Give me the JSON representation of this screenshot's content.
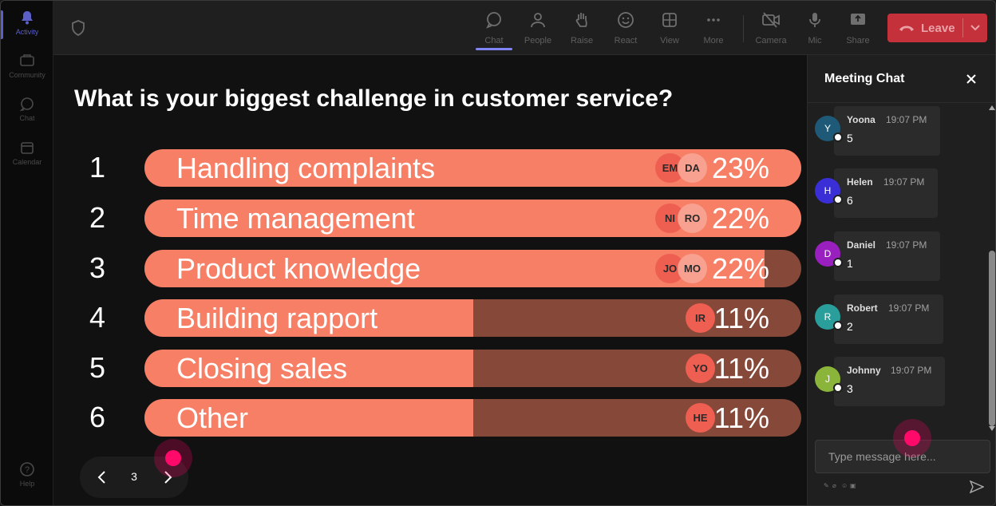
{
  "rail": {
    "items": [
      {
        "label": "Activity",
        "icon": "bell-icon",
        "active": true
      },
      {
        "label": "Community",
        "icon": "community-icon"
      },
      {
        "label": "Chat",
        "icon": "chat-icon"
      },
      {
        "label": "Calendar",
        "icon": "calendar-icon"
      }
    ],
    "help_label": "Help"
  },
  "toolbar": {
    "buttons": [
      {
        "label": "Chat",
        "icon": "chat-icon",
        "active": true
      },
      {
        "label": "People",
        "icon": "people-icon"
      },
      {
        "label": "Raise",
        "icon": "raise-hand-icon"
      },
      {
        "label": "React",
        "icon": "smiley-icon"
      },
      {
        "label": "View",
        "icon": "grid-icon"
      },
      {
        "label": "More",
        "icon": "more-icon"
      },
      {
        "label": "Camera",
        "icon": "camera-off-icon"
      },
      {
        "label": "Mic",
        "icon": "mic-icon"
      },
      {
        "label": "Share",
        "icon": "share-icon"
      }
    ],
    "leave_label": "Leave",
    "leave_color": "#c4313b"
  },
  "poll": {
    "question": "What is your biggest challenge in customer service?",
    "options": [
      {
        "num": "1",
        "label": "Handling complaints",
        "percent": "23%",
        "fill_fraction": 1.0,
        "avatars": [
          "EM",
          "DA"
        ]
      },
      {
        "num": "2",
        "label": "Time management",
        "percent": "22%",
        "fill_fraction": 1.0,
        "avatars": [
          "NI",
          "RO"
        ]
      },
      {
        "num": "3",
        "label": "Product knowledge",
        "percent": "22%",
        "fill_fraction": 0.944,
        "avatars": [
          "JO",
          "MO"
        ]
      },
      {
        "num": "4",
        "label": "Building rapport",
        "percent": "11%",
        "fill_fraction": 0.5,
        "avatars": [
          "IR"
        ]
      },
      {
        "num": "5",
        "label": "Closing sales",
        "percent": "11%",
        "fill_fraction": 0.5,
        "avatars": [
          "YO"
        ]
      },
      {
        "num": "6",
        "label": "Other",
        "percent": "11%",
        "fill_fraction": 0.5,
        "avatars": [
          "HE"
        ]
      }
    ],
    "bar_color": "#f67f65",
    "bar_track_color": "#854839",
    "page": "3"
  },
  "chat": {
    "title": "Meeting Chat",
    "messages": [
      {
        "initial": "Y",
        "name": "Yoona",
        "time": "19:07 PM",
        "text": "5",
        "avatar_color": "#1e5a78"
      },
      {
        "initial": "H",
        "name": "Helen",
        "time": "19:07 PM",
        "text": "6",
        "avatar_color": "#3a2fd6"
      },
      {
        "initial": "D",
        "name": "Daniel",
        "time": "19:07 PM",
        "text": "1",
        "avatar_color": "#9a1fbf"
      },
      {
        "initial": "R",
        "name": "Robert",
        "time": "19:07 PM",
        "text": "2",
        "avatar_color": "#2a9e9b"
      },
      {
        "initial": "J",
        "name": "Johnny",
        "time": "19:07 PM",
        "text": "3",
        "avatar_color": "#8ab53a"
      }
    ],
    "input_placeholder": "Type message here..."
  }
}
